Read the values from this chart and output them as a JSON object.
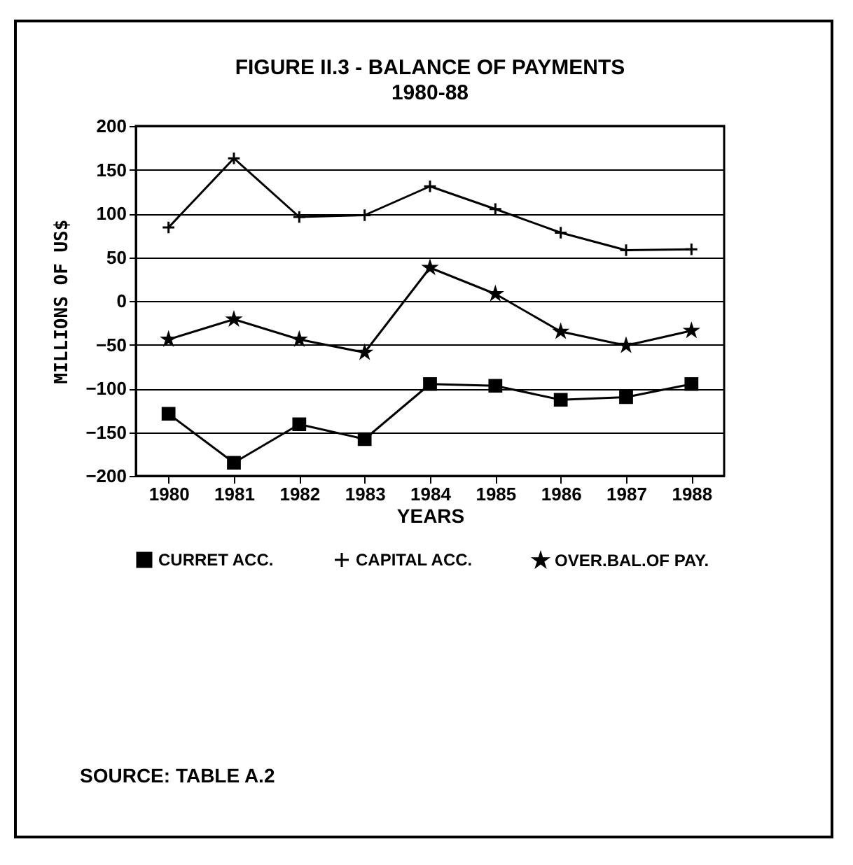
{
  "chart_data": {
    "type": "line",
    "title": "FIGURE II.3 - BALANCE OF PAYMENTS",
    "subtitle": "1980-88",
    "xlabel": "YEARS",
    "ylabel": "MILLIONS OF US$",
    "categories": [
      "1980",
      "1981",
      "1982",
      "1983",
      "1984",
      "1985",
      "1986",
      "1987",
      "1988"
    ],
    "series": [
      {
        "name": "CURRET ACC.",
        "color": "#000000",
        "marker": "square",
        "values": [
          -129,
          -185,
          -141,
          -158,
          -95,
          -97,
          -113,
          -110,
          -95
        ]
      },
      {
        "name": "CAPITAL ACC.",
        "color": "#000000",
        "marker": "cross",
        "values": [
          84,
          163,
          96,
          98,
          131,
          105,
          78,
          58,
          59
        ]
      },
      {
        "name": "OVER.BAL.OF PAY.",
        "color": "#000000",
        "marker": "star",
        "values": [
          -44,
          -21,
          -44,
          -59,
          38,
          8,
          -35,
          -51,
          -34
        ]
      }
    ],
    "ylim": [
      -200,
      200
    ],
    "yticks": [
      -200,
      -150,
      -100,
      -50,
      0,
      50,
      100,
      150,
      200
    ],
    "grid": "y",
    "legend": "bottom",
    "line_style": "solid",
    "annotations": [
      "SOURCE: TABLE A.2"
    ]
  }
}
